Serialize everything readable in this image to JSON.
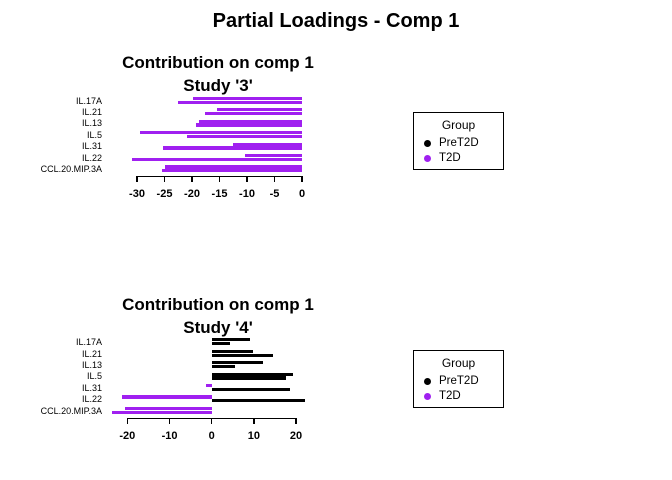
{
  "page_title": "Partial Loadings - Comp 1",
  "colors": {
    "PreT2D": "#000000",
    "T2D": "#A020F0"
  },
  "legend": {
    "title": "Group",
    "position": "right",
    "items": [
      {
        "label": "PreT2D",
        "color": "#000000"
      },
      {
        "label": "T2D",
        "color": "#A020F0"
      }
    ]
  },
  "chart_data": [
    {
      "type": "bar",
      "orientation": "horizontal",
      "title": "Contribution on comp 1",
      "subtitle": "Study '3'",
      "categories": [
        "IL.17A",
        "IL.21",
        "IL.13",
        "IL.5",
        "IL.31",
        "IL.22",
        "CCL.20.MIP.3A"
      ],
      "x_ticks": [
        -30,
        -25,
        -20,
        -15,
        -10,
        -5,
        0
      ],
      "xlim": [
        -31.5,
        0.5
      ],
      "grid": false,
      "bars": [
        {
          "category": "IL.17A",
          "values": [
            {
              "value": -19.9,
              "group": "T2D"
            },
            {
              "value": -22.6,
              "group": "T2D"
            }
          ]
        },
        {
          "category": "IL.21",
          "values": [
            {
              "value": -15.4,
              "group": "T2D"
            },
            {
              "value": -17.6,
              "group": "T2D"
            }
          ]
        },
        {
          "category": "IL.13",
          "values": [
            {
              "value": -18.7,
              "group": "T2D"
            },
            {
              "value": -19.3,
              "group": "T2D"
            }
          ]
        },
        {
          "category": "IL.5",
          "values": [
            {
              "value": -29.5,
              "group": "T2D"
            },
            {
              "value": -20.9,
              "group": "T2D"
            }
          ]
        },
        {
          "category": "IL.31",
          "values": [
            {
              "value": -12.6,
              "group": "T2D"
            },
            {
              "value": -25.3,
              "group": "T2D"
            }
          ]
        },
        {
          "category": "IL.22",
          "values": [
            {
              "value": -10.4,
              "group": "T2D"
            },
            {
              "value": -31.0,
              "group": "T2D"
            }
          ]
        },
        {
          "category": "CCL.20.MIP.3A",
          "values": [
            {
              "value": -24.9,
              "group": "T2D"
            },
            {
              "value": -25.4,
              "group": "T2D"
            }
          ]
        }
      ]
    },
    {
      "type": "bar",
      "orientation": "horizontal",
      "title": "Contribution on comp 1",
      "subtitle": "Study '4'",
      "categories": [
        "IL.17A",
        "IL.21",
        "IL.13",
        "IL.5",
        "IL.31",
        "IL.22",
        "CCL.20.MIP.3A"
      ],
      "x_ticks": [
        -20,
        -10,
        0,
        10,
        20
      ],
      "xlim": [
        -24,
        23
      ],
      "grid": false,
      "bars": [
        {
          "category": "IL.17A",
          "values": [
            {
              "value": 9.1,
              "group": "PreT2D"
            },
            {
              "value": 4.3,
              "group": "PreT2D"
            }
          ]
        },
        {
          "category": "IL.21",
          "values": [
            {
              "value": 9.8,
              "group": "PreT2D"
            },
            {
              "value": 14.6,
              "group": "PreT2D"
            }
          ]
        },
        {
          "category": "IL.13",
          "values": [
            {
              "value": 12.2,
              "group": "PreT2D"
            },
            {
              "value": 5.5,
              "group": "PreT2D"
            }
          ]
        },
        {
          "category": "IL.5",
          "values": [
            {
              "value": 19.3,
              "group": "PreT2D"
            },
            {
              "value": 17.7,
              "group": "PreT2D"
            }
          ]
        },
        {
          "category": "IL.31",
          "values": [
            {
              "value": -1.3,
              "group": "T2D"
            },
            {
              "value": 18.5,
              "group": "PreT2D"
            }
          ]
        },
        {
          "category": "IL.22",
          "values": [
            {
              "value": -21.3,
              "group": "T2D"
            },
            {
              "value": 22.1,
              "group": "PreT2D"
            }
          ]
        },
        {
          "category": "CCL.20.MIP.3A",
          "values": [
            {
              "value": -20.5,
              "group": "T2D"
            },
            {
              "value": -23.6,
              "group": "T2D"
            }
          ]
        }
      ]
    }
  ]
}
